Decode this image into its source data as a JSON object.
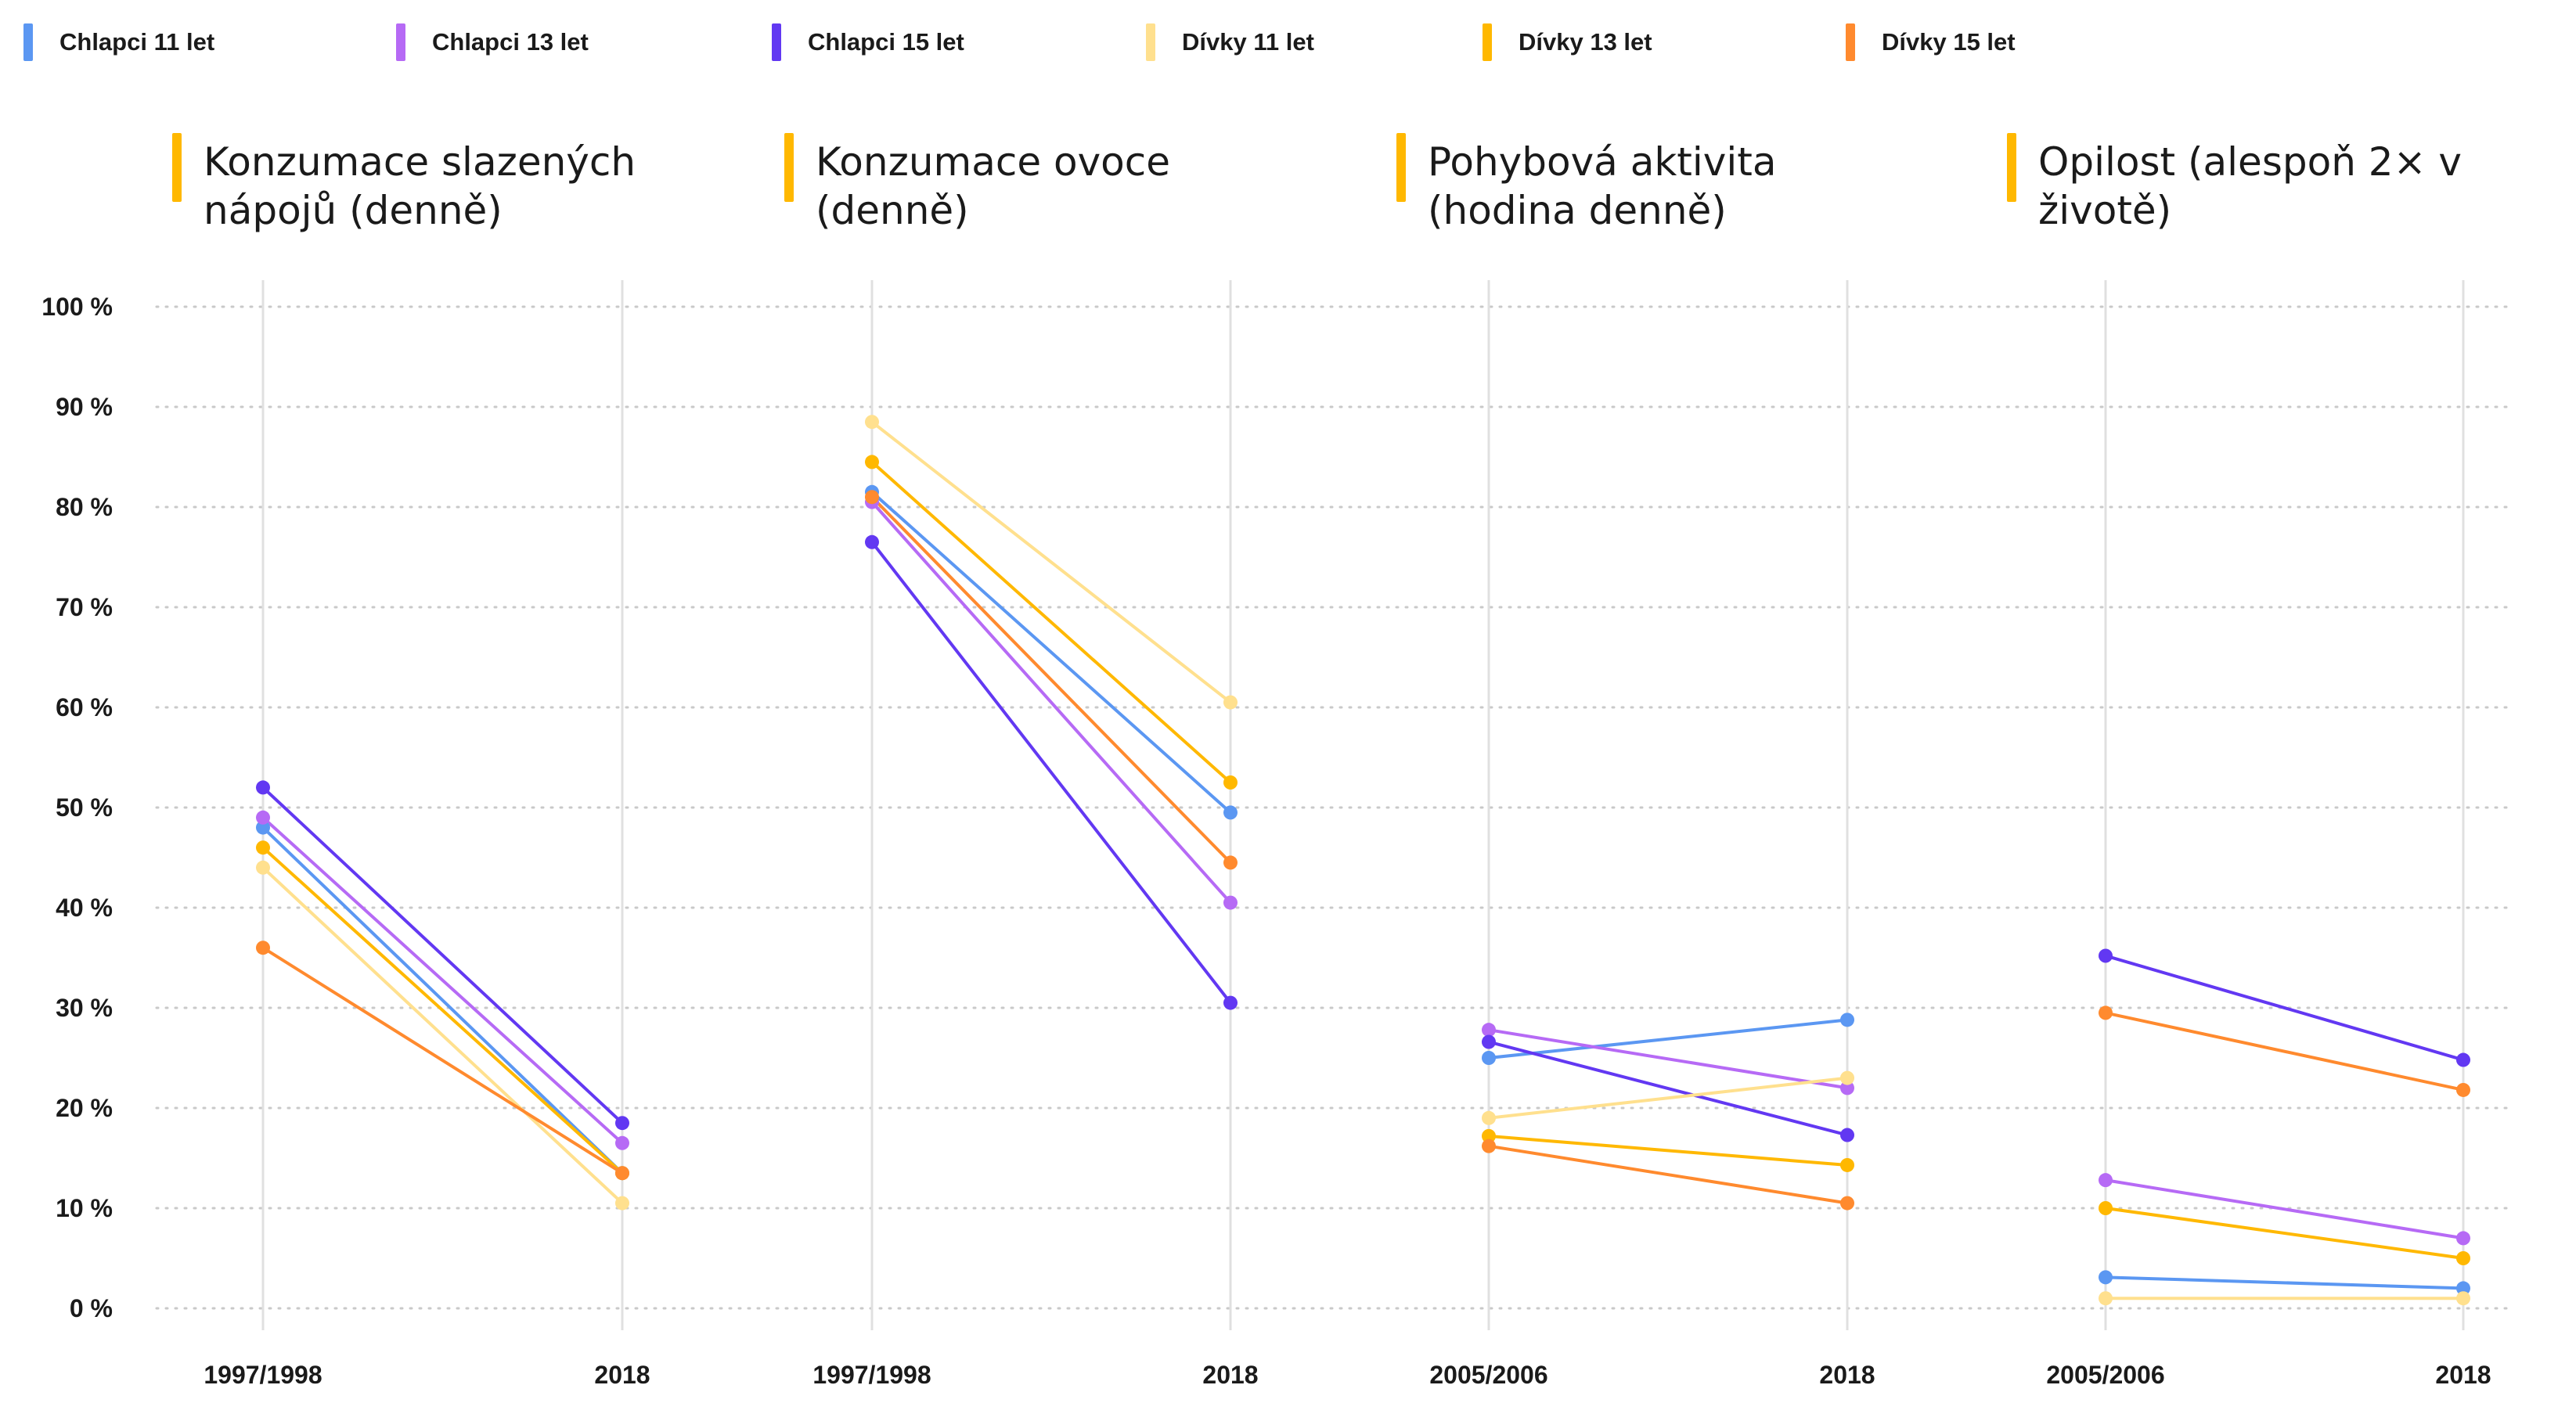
{
  "legend": [
    {
      "label": "Chlapci 11 let",
      "color": "#5B97F2"
    },
    {
      "label": "Chlapci 13 let",
      "color": "#B66AF5"
    },
    {
      "label": "Chlapci 15 let",
      "color": "#6238F2"
    },
    {
      "label": "Dívky 11 let",
      "color": "#FFE08E"
    },
    {
      "label": "Dívky 13 let",
      "color": "#FFB800"
    },
    {
      "label": "Dívky 15 let",
      "color": "#FF8A2E"
    }
  ],
  "panels": [
    {
      "title": "Konzumace slazených nápojů (denně)"
    },
    {
      "title": "Konzumace ovoce (denně)"
    },
    {
      "title": "Pohybová aktivita (hodina denně)"
    },
    {
      "title": "Opilost (alespoň 2× v životě)"
    }
  ],
  "chart_data": {
    "type": "line",
    "ylim": [
      0,
      100
    ],
    "y_ticks": [
      "0 %",
      "10 %",
      "20 %",
      "30 %",
      "40 %",
      "50 %",
      "60 %",
      "70 %",
      "80 %",
      "90 %",
      "100 %"
    ],
    "grid": true,
    "legend_placement": "top",
    "charts": [
      {
        "title": "Konzumace slazených nápojů (denně)",
        "x": [
          "1997/1998",
          "2018"
        ],
        "series": [
          {
            "name": "Chlapci 11 let",
            "values": [
              48,
              13.5
            ]
          },
          {
            "name": "Chlapci 13 let",
            "values": [
              49,
              16.5
            ]
          },
          {
            "name": "Chlapci 15 let",
            "values": [
              52,
              18.5
            ]
          },
          {
            "name": "Dívky 11 let",
            "values": [
              44,
              10.5
            ]
          },
          {
            "name": "Dívky 13 let",
            "values": [
              46,
              13.5
            ]
          },
          {
            "name": "Dívky 15 let",
            "values": [
              36,
              13.5
            ]
          }
        ]
      },
      {
        "title": "Konzumace ovoce (denně)",
        "x": [
          "1997/1998",
          "2018"
        ],
        "series": [
          {
            "name": "Chlapci 11 let",
            "values": [
              81.5,
              49.5
            ]
          },
          {
            "name": "Chlapci 13 let",
            "values": [
              80.5,
              40.5
            ]
          },
          {
            "name": "Chlapci 15 let",
            "values": [
              76.5,
              30.5
            ]
          },
          {
            "name": "Dívky 11 let",
            "values": [
              88.5,
              60.5
            ]
          },
          {
            "name": "Dívky 13 let",
            "values": [
              84.5,
              52.5
            ]
          },
          {
            "name": "Dívky 15 let",
            "values": [
              81,
              44.5
            ]
          }
        ]
      },
      {
        "title": "Pohybová aktivita (hodina denně)",
        "x": [
          "2005/2006",
          "2018"
        ],
        "series": [
          {
            "name": "Chlapci 11 let",
            "values": [
              25,
              28.8
            ]
          },
          {
            "name": "Chlapci 13 let",
            "values": [
              27.8,
              22
            ]
          },
          {
            "name": "Chlapci 15 let",
            "values": [
              26.6,
              17.3
            ]
          },
          {
            "name": "Dívky 11 let",
            "values": [
              19,
              23
            ]
          },
          {
            "name": "Dívky 13 let",
            "values": [
              17.2,
              14.3
            ]
          },
          {
            "name": "Dívky 15 let",
            "values": [
              16.2,
              10.5
            ]
          }
        ]
      },
      {
        "title": "Opilost (alespoň 2× v životě)",
        "x": [
          "2005/2006",
          "2018"
        ],
        "series": [
          {
            "name": "Chlapci 11 let",
            "values": [
              3.1,
              2
            ]
          },
          {
            "name": "Chlapci 13 let",
            "values": [
              12.8,
              7
            ]
          },
          {
            "name": "Chlapci 15 let",
            "values": [
              35.2,
              24.8
            ]
          },
          {
            "name": "Dívky 11 let",
            "values": [
              1,
              1
            ]
          },
          {
            "name": "Dívky 13 let",
            "values": [
              10,
              5
            ]
          },
          {
            "name": "Dívky 15 let",
            "values": [
              29.5,
              21.8
            ]
          }
        ]
      }
    ]
  }
}
